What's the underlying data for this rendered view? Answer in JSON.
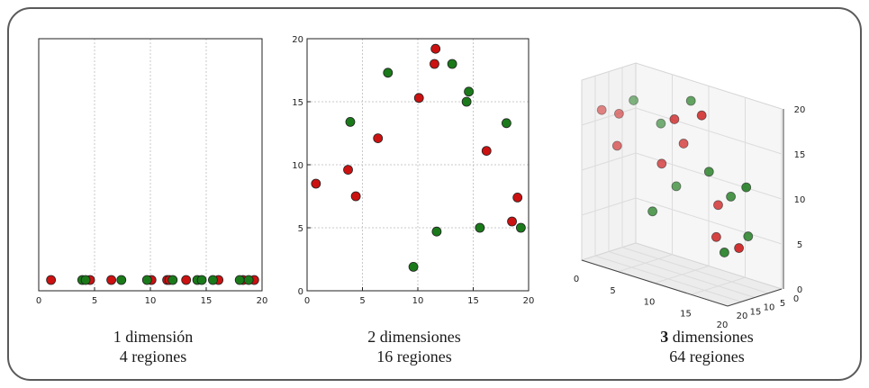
{
  "chart_data": [
    {
      "type": "scatter",
      "x_ticks": [
        "0",
        "5",
        "10",
        "15",
        "20"
      ],
      "xlim": [
        0,
        20
      ],
      "grid": true,
      "series": [
        {
          "color": "#cc1111",
          "x": [
            1.1,
            4.6,
            6.5,
            10.1,
            11.5,
            11.7,
            13.2,
            16.1,
            18.3,
            19.3
          ],
          "y": [
            0,
            0,
            0,
            0,
            0,
            0,
            0,
            0,
            0,
            0
          ]
        },
        {
          "color": "#1a7a1a",
          "x": [
            3.9,
            4.2,
            7.4,
            9.7,
            12.0,
            14.2,
            14.6,
            15.6,
            18.0,
            18.8
          ],
          "y": [
            0,
            0,
            0,
            0,
            0,
            0,
            0,
            0,
            0,
            0
          ]
        }
      ],
      "caption_number": "1",
      "caption_word": "dimensión",
      "caption_regions": "4 regiones"
    },
    {
      "type": "scatter",
      "x_ticks": [
        "0",
        "5",
        "10",
        "15",
        "20"
      ],
      "y_ticks": [
        "0",
        "5",
        "10",
        "15",
        "20"
      ],
      "xlim": [
        0,
        20
      ],
      "ylim": [
        0,
        20
      ],
      "grid": true,
      "series": [
        {
          "color": "#cc1111",
          "x": [
            0.8,
            3.7,
            4.4,
            6.4,
            10.1,
            11.5,
            11.6,
            16.2,
            18.5,
            19.0
          ],
          "y": [
            8.5,
            9.6,
            7.5,
            12.1,
            15.3,
            18.0,
            19.2,
            11.1,
            5.5,
            7.4
          ]
        },
        {
          "color": "#1a7a1a",
          "x": [
            3.9,
            7.3,
            9.6,
            11.7,
            13.1,
            14.4,
            14.6,
            15.6,
            18.0,
            19.3
          ],
          "y": [
            13.4,
            17.3,
            1.9,
            4.7,
            18.0,
            15.0,
            15.8,
            5.0,
            13.3,
            5.0
          ]
        }
      ],
      "caption_number": "2",
      "caption_word": "dimensiones",
      "caption_regions": "16 regiones"
    },
    {
      "type": "scatter3d",
      "x_ticks": [
        "0",
        "5",
        "10",
        "15",
        "20"
      ],
      "y_ticks": [
        "0",
        "5",
        "10",
        "15",
        "20"
      ],
      "z_ticks": [
        "0",
        "5",
        "10",
        "15",
        "20"
      ],
      "xlim": [
        0,
        20
      ],
      "ylim": [
        0,
        20
      ],
      "zlim": [
        0,
        20
      ],
      "grid": true,
      "series": [
        {
          "color": "#cc1111",
          "x": [
            2,
            4,
            3,
            8,
            9,
            12,
            11,
            15,
            14,
            16
          ],
          "y": [
            18,
            17,
            15,
            12,
            10,
            8,
            12,
            10,
            8,
            5
          ],
          "z": [
            17,
            17,
            13,
            12,
            17,
            18,
            15,
            9,
            5,
            4
          ]
        },
        {
          "color": "#1a7a1a",
          "x": [
            6,
            9,
            12,
            13,
            16,
            18,
            6,
            10,
            14,
            17
          ],
          "y": [
            17,
            15,
            12,
            8,
            8,
            7,
            10,
            12,
            5,
            5
          ],
          "z": [
            19,
            17,
            20,
            12,
            10,
            6,
            6,
            10,
            3,
            11
          ]
        }
      ],
      "caption_number": "3",
      "caption_word": "dimensiones",
      "caption_regions": "64 regiones"
    }
  ]
}
